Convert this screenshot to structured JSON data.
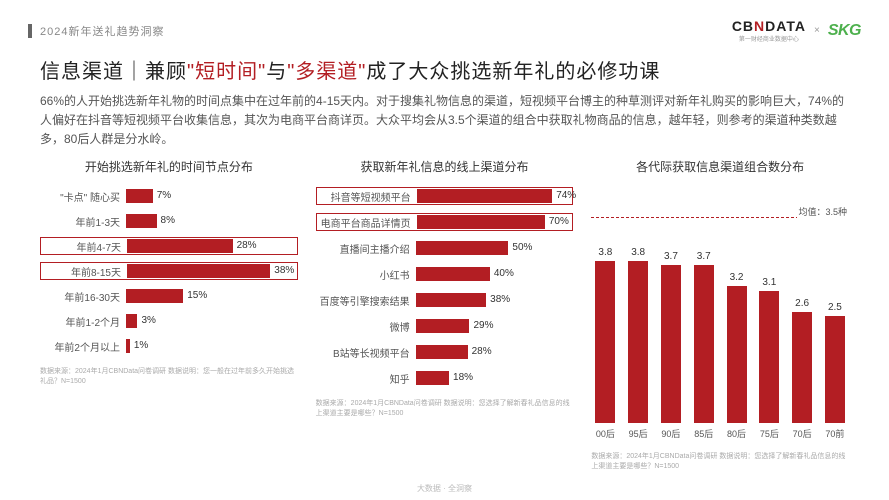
{
  "header": {
    "section_label": "2024新年送礼趋势洞察",
    "logo_cbn_prefix": "CB",
    "logo_cbn_x": "N",
    "logo_cbn_suffix": "DATA",
    "logo_cbn_sub": "第一财经商业数据中心",
    "logo_mult": "×",
    "logo_skg": "SKG"
  },
  "title": {
    "pre": "信息渠道｜兼顾",
    "q1": "\"短时间\"",
    "mid": "与",
    "q2": "\"多渠道\"",
    "post": "成了大众挑选新年礼的必修功课"
  },
  "body_text": "66%的人开始挑选新年礼物的时间点集中在过年前的4-15天内。对于搜集礼物信息的渠道，短视频平台博主的种草测评对新年礼购买的影响巨大，74%的人偏好在抖音等短视频平台收集信息，其次为电商平台商详页。大众平均会从3.5个渠道的组合中获取礼物商品的信息，越年轻，则参考的渠道种类数越多，80后人群是分水岭。",
  "chart1": {
    "title": "开始挑选新年礼的时间节点分布",
    "type": "bar-horizontal",
    "bar_color": "#b31e23",
    "max": 45,
    "rows": [
      {
        "label": "\"卡点\" 随心买",
        "value": 7,
        "text": "7%",
        "boxed": false
      },
      {
        "label": "年前1-3天",
        "value": 8,
        "text": "8%",
        "boxed": false
      },
      {
        "label": "年前4-7天",
        "value": 28,
        "text": "28%",
        "boxed": true
      },
      {
        "label": "年前8-15天",
        "value": 38,
        "text": "38%",
        "boxed": true
      },
      {
        "label": "年前16-30天",
        "value": 15,
        "text": "15%",
        "boxed": false
      },
      {
        "label": "年前1-2个月",
        "value": 3,
        "text": "3%",
        "boxed": false
      },
      {
        "label": "年前2个月以上",
        "value": 1,
        "text": "1%",
        "boxed": false
      }
    ],
    "source": "数据来源：2024年1月CBNData问卷调研 数据说明：您一般在过年前多久开始挑选礼品？N=1500"
  },
  "chart2": {
    "title": "获取新年礼信息的线上渠道分布",
    "type": "bar-horizontal",
    "bar_color": "#b31e23",
    "max": 85,
    "rows": [
      {
        "label": "抖音等短视频平台",
        "value": 74,
        "text": "74%",
        "boxed": true
      },
      {
        "label": "电商平台商品详情页",
        "value": 70,
        "text": "70%",
        "boxed": true
      },
      {
        "label": "直播间主播介绍",
        "value": 50,
        "text": "50%",
        "boxed": false
      },
      {
        "label": "小红书",
        "value": 40,
        "text": "40%",
        "boxed": false
      },
      {
        "label": "百度等引擎搜索结果",
        "value": 38,
        "text": "38%",
        "boxed": false
      },
      {
        "label": "微博",
        "value": 29,
        "text": "29%",
        "boxed": false
      },
      {
        "label": "B站等长视频平台",
        "value": 28,
        "text": "28%",
        "boxed": false
      },
      {
        "label": "知乎",
        "value": 18,
        "text": "18%",
        "boxed": false
      }
    ],
    "source": "数据来源：2024年1月CBNData问卷调研 数据说明：您选择了解新春礼品信息的线上渠道主要是哪些？N=1500"
  },
  "chart3": {
    "title": "各代际获取信息渠道组合数分布",
    "type": "bar-vertical",
    "bar_color": "#b31e23",
    "ymax": 4.2,
    "avg": {
      "value": 3.5,
      "label": "均值：3.5种"
    },
    "bars": [
      {
        "cat": "00后",
        "value": 3.8,
        "text": "3.8"
      },
      {
        "cat": "95后",
        "value": 3.8,
        "text": "3.8"
      },
      {
        "cat": "90后",
        "value": 3.7,
        "text": "3.7"
      },
      {
        "cat": "85后",
        "value": 3.7,
        "text": "3.7"
      },
      {
        "cat": "80后",
        "value": 3.2,
        "text": "3.2"
      },
      {
        "cat": "75后",
        "value": 3.1,
        "text": "3.1"
      },
      {
        "cat": "70后",
        "value": 2.6,
        "text": "2.6"
      },
      {
        "cat": "70前",
        "value": 2.5,
        "text": "2.5"
      }
    ],
    "source": "数据来源：2024年1月CBNData问卷调研 数据说明：您选择了解新春礼品信息的线上渠道主要是哪些？N=1500"
  },
  "footer": "大数据 · 全洞察"
}
